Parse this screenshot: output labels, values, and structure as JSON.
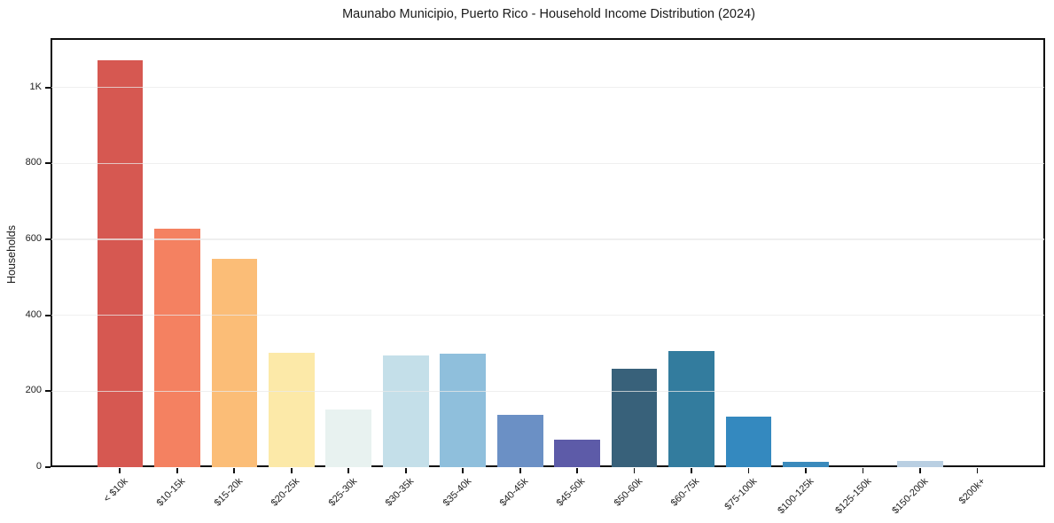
{
  "figure": {
    "background": "#ffffff",
    "frame_color": "#0d0d0d",
    "gridline_color": "#e9e9e9"
  },
  "chart_data": {
    "type": "bar",
    "title": "Maunabo Municipio, Puerto Rico - Household Income Distribution (2024)",
    "xlabel": "",
    "ylabel": "Households",
    "categories": [
      "< $10k",
      "$10-15k",
      "$15-20k",
      "$20-25k",
      "$25-30k",
      "$30-35k",
      "$35-40k",
      "$40-45k",
      "$45-50k",
      "$50-60k",
      "$60-75k",
      "$75-100k",
      "$100-125k",
      "$125-150k",
      "$150-200k",
      "$200k+"
    ],
    "values": [
      1073,
      628,
      549,
      302,
      152,
      295,
      300,
      138,
      72,
      260,
      307,
      134,
      13,
      0,
      16,
      0
    ],
    "bar_colors": [
      "#d65851",
      "#f48161",
      "#fbbd77",
      "#fce9a8",
      "#e8f2f0",
      "#c4dfe9",
      "#8fbfdc",
      "#6b90c5",
      "#5d5ba8",
      "#38617a",
      "#337c9e",
      "#3489bf",
      "#3a8abc",
      "#3a8abc",
      "#b9cfe2",
      "#b9cfe2"
    ],
    "yticks": {
      "values": [
        0,
        200,
        400,
        600,
        800,
        1000
      ],
      "labels": [
        "0",
        "200",
        "400",
        "600",
        "800",
        "1K"
      ]
    },
    "ylim": [
      0,
      1128
    ],
    "grid": true,
    "legend_position": "none"
  }
}
